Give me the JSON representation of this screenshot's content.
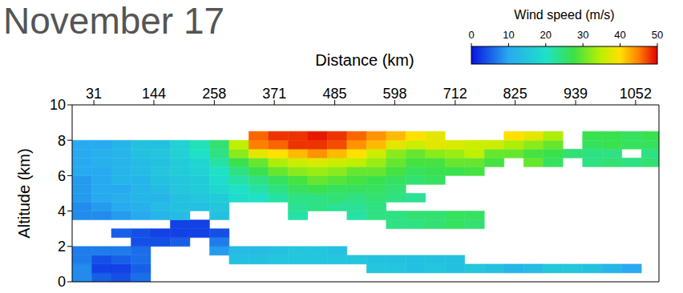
{
  "chart_data": {
    "type": "heatmap",
    "title": "November 17",
    "x_label": "Distance (km)",
    "y_label": "Altitude (km)",
    "xlim": [
      -10,
      1096
    ],
    "xticks": [
      31,
      144,
      258,
      371,
      485,
      598,
      712,
      825,
      939,
      1052
    ],
    "ylim": [
      0,
      10
    ],
    "yticks": [
      0,
      2,
      4,
      6,
      8,
      10
    ],
    "x_bins": [
      -10,
      27,
      64,
      101,
      138,
      175,
      212,
      249,
      286,
      323,
      360,
      397,
      434,
      471,
      508,
      545,
      582,
      619,
      656,
      693,
      730,
      767,
      804,
      841,
      878,
      915,
      952,
      989,
      1026,
      1063,
      1096
    ],
    "y_bins": [
      0,
      0.5,
      1,
      1.5,
      2,
      2.5,
      3,
      3.5,
      4,
      4.5,
      5,
      5.5,
      6,
      6.5,
      7,
      7.5,
      8,
      8.5
    ],
    "cells": [
      [
        8,
        8,
        7,
        7,
        null,
        null,
        null,
        8,
        8,
        9,
        9,
        9,
        10,
        10,
        10,
        10,
        null
      ],
      [
        5,
        3,
        4,
        7,
        null,
        null,
        null,
        8,
        9,
        10,
        10,
        10,
        10,
        11,
        11,
        10,
        null
      ],
      [
        4,
        3,
        5,
        7,
        null,
        5,
        null,
        9,
        10,
        11,
        10,
        12,
        12,
        12,
        12,
        12,
        null
      ],
      [
        6,
        5,
        6,
        6,
        4,
        4,
        null,
        10,
        11,
        12,
        12,
        12,
        13,
        13,
        14,
        14,
        null
      ],
      [
        null,
        null,
        null,
        null,
        4,
        3,
        null,
        12,
        13,
        12,
        13,
        14,
        15,
        14,
        15,
        14,
        null
      ],
      [
        null,
        null,
        null,
        null,
        5,
        3,
        3,
        13,
        14,
        14,
        15,
        15,
        16,
        16,
        17,
        17,
        null
      ],
      [
        null,
        null,
        null,
        null,
        null,
        3,
        3,
        null,
        14,
        15,
        16,
        16,
        17,
        18,
        20,
        21,
        null
      ],
      [
        null,
        null,
        null,
        9,
        7,
        4,
        null,
        14,
        15,
        16,
        18,
        19,
        20,
        22,
        24,
        25,
        null
      ],
      [
        null,
        null,
        14,
        13,
        null,
        null,
        null,
        null,
        null,
        19,
        20,
        22,
        24,
        27,
        32,
        35,
        null
      ],
      [
        null,
        null,
        14,
        13,
        null,
        null,
        null,
        null,
        null,
        20,
        22,
        24,
        27,
        30,
        38,
        45,
        46
      ],
      [
        null,
        null,
        15,
        14,
        null,
        null,
        null,
        null,
        null,
        22,
        24,
        26,
        30,
        34,
        40,
        46,
        48
      ],
      [
        null,
        null,
        15,
        15,
        null,
        null,
        null,
        22,
        23,
        24,
        26,
        28,
        32,
        36,
        42,
        48,
        48
      ],
      [
        null,
        null,
        15,
        15,
        null,
        null,
        null,
        null,
        24,
        24,
        27,
        30,
        33,
        37,
        44,
        48,
        49
      ],
      [
        null,
        null,
        15,
        14,
        null,
        null,
        null,
        null,
        23,
        25,
        26,
        29,
        32,
        36,
        42,
        47,
        48
      ],
      [
        null,
        null,
        15,
        null,
        null,
        null,
        null,
        22,
        23,
        24,
        26,
        28,
        30,
        35,
        40,
        44,
        46
      ],
      [
        null,
        15,
        14,
        null,
        null,
        null,
        null,
        24,
        24,
        25,
        26,
        27,
        30,
        33,
        36,
        42,
        44
      ],
      [
        null,
        15,
        14,
        null,
        null,
        null,
        24,
        24,
        null,
        24,
        25,
        26,
        28,
        30,
        32,
        38,
        42
      ],
      [
        null,
        14,
        14,
        null,
        null,
        null,
        24,
        25,
        null,
        23,
        null,
        25,
        26,
        28,
        30,
        36,
        40
      ],
      [
        null,
        15,
        14,
        null,
        null,
        null,
        25,
        25,
        null,
        null,
        null,
        26,
        27,
        28,
        32,
        38,
        38
      ],
      [
        null,
        14,
        14,
        null,
        null,
        null,
        26,
        26,
        null,
        null,
        null,
        null,
        27,
        30,
        33,
        37,
        null
      ],
      [
        null,
        15,
        null,
        null,
        null,
        null,
        25,
        26,
        null,
        null,
        null,
        null,
        28,
        30,
        35,
        36,
        null
      ],
      [
        null,
        14,
        null,
        null,
        null,
        null,
        null,
        null,
        null,
        null,
        null,
        null,
        null,
        28,
        30,
        36,
        null
      ],
      [
        null,
        12,
        null,
        null,
        null,
        null,
        null,
        null,
        null,
        null,
        null,
        null,
        null,
        null,
        30,
        34,
        40
      ],
      [
        null,
        13,
        null,
        null,
        null,
        null,
        null,
        null,
        null,
        null,
        null,
        null,
        null,
        30,
        28,
        32,
        38
      ],
      [
        null,
        15,
        null,
        null,
        null,
        null,
        null,
        null,
        null,
        null,
        null,
        null,
        null,
        26,
        27,
        30,
        34
      ],
      [
        null,
        15,
        null,
        null,
        null,
        null,
        null,
        null,
        null,
        null,
        null,
        null,
        null,
        null,
        25,
        null,
        null
      ],
      [
        null,
        14,
        null,
        null,
        null,
        null,
        null,
        null,
        null,
        null,
        null,
        null,
        null,
        24,
        24,
        26,
        27
      ],
      [
        null,
        12,
        null,
        null,
        null,
        null,
        null,
        null,
        null,
        null,
        null,
        null,
        null,
        25,
        24,
        27,
        27
      ],
      [
        null,
        10,
        null,
        null,
        null,
        null,
        null,
        null,
        null,
        null,
        null,
        null,
        null,
        24,
        null,
        26,
        26
      ],
      [
        null,
        null,
        null,
        null,
        null,
        null,
        null,
        null,
        null,
        null,
        null,
        null,
        null,
        25,
        24,
        26,
        27
      ]
    ],
    "color_label": "Wind speed (m/s)",
    "color_range": [
      0,
      50
    ],
    "color_ticks": [
      0,
      10,
      20,
      30,
      40,
      50
    ]
  }
}
